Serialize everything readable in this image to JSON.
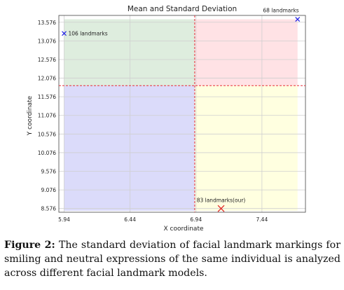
{
  "chart_data": {
    "type": "scatter",
    "title": "Mean and Standard Deviation",
    "xlabel": "X coordinate",
    "ylabel": "Y coordinate",
    "xlim": [
      5.9,
      7.77
    ],
    "ylim": [
      8.476,
      13.76
    ],
    "xticks": [
      "5.94",
      "6.44",
      "6.94",
      "7.44"
    ],
    "yticks": [
      "8.576",
      "9.076",
      "9.576",
      "10.076",
      "10.576",
      "11.076",
      "11.576",
      "12.076",
      "12.576",
      "13.076",
      "13.576"
    ],
    "grid": true,
    "mean_x": 6.93,
    "mean_y": 11.876,
    "reference_line_color": "#e8303a",
    "quadrants": [
      {
        "x": [
          5.94,
          6.93
        ],
        "y": [
          11.876,
          13.656
        ],
        "color": "#5aa55a"
      },
      {
        "x": [
          6.93,
          7.71
        ],
        "y": [
          11.876,
          13.656
        ],
        "color": "#ff6d7d"
      },
      {
        "x": [
          5.94,
          6.93
        ],
        "y": [
          8.516,
          11.876
        ],
        "color": "#4a4ae6"
      },
      {
        "x": [
          6.93,
          7.71
        ],
        "y": [
          8.516,
          11.876
        ],
        "color": "#ffff66"
      }
    ],
    "points": [
      {
        "label": "106 landmarks",
        "x": 5.94,
        "y": 13.276,
        "color": "#1a1ae6",
        "label_side": "right"
      },
      {
        "label": "68 landmarks",
        "x": 7.71,
        "y": 13.656,
        "color": "#1a1ae6",
        "label_side": "left-above"
      },
      {
        "label": "83 landmarks(our)",
        "x": 7.13,
        "y": 8.576,
        "color": "#e02020",
        "label_side": "above"
      }
    ]
  },
  "caption": {
    "label": "Figure 2:",
    "text": "The standard deviation of facial landmark markings for smiling and neutral expressions of the same individual is analyzed across different facial landmark models."
  }
}
